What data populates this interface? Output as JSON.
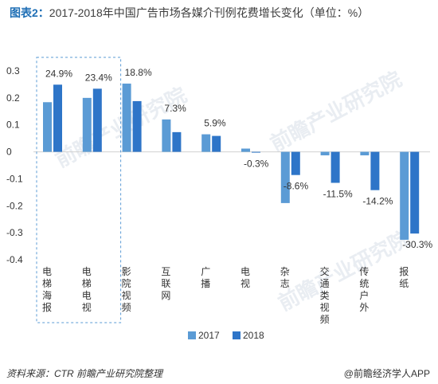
{
  "title_prefix": "图表2：",
  "title_text": "2017-2018年中国广告市场各媒介刊例花费增长变化（单位：%）",
  "source": "资料来源：CTR  前瞻产业研究院整理",
  "brand": "@前瞻经济学人APP",
  "colors": {
    "series_2017": "#5b9bd5",
    "series_2018": "#2e75c8",
    "highlight_box": "#5b9bd5"
  },
  "chart_data": {
    "type": "bar",
    "categories": [
      "电梯海报",
      "电梯电视",
      "影院视频",
      "互联网",
      "广播",
      "电视",
      "杂志",
      "交通类视频",
      "传统户外",
      "报纸"
    ],
    "series": [
      {
        "name": "2017",
        "values": [
          0.184,
          0.2,
          0.253,
          0.12,
          0.065,
          0.012,
          -0.19,
          -0.013,
          -0.013,
          -0.326
        ]
      },
      {
        "name": "2018",
        "values": [
          0.249,
          0.234,
          0.188,
          0.073,
          0.059,
          -0.003,
          -0.086,
          -0.115,
          -0.142,
          -0.303
        ]
      }
    ],
    "data_labels": [
      "24.9%",
      "23.4%",
      "18.8%",
      "7.3%",
      "5.9%",
      "-0.3%",
      "-8.6%",
      "-11.5%",
      "-14.2%",
      "-30.3%"
    ],
    "yticks": [
      "0.3",
      "0.2",
      "0.1",
      "0",
      "-0.1",
      "-0.2",
      "-0.3",
      "-0.4"
    ],
    "ylim": [
      -0.4,
      0.3
    ],
    "legend_position": "bottom",
    "highlight_categories": [
      "电梯海报",
      "电梯电视"
    ]
  }
}
